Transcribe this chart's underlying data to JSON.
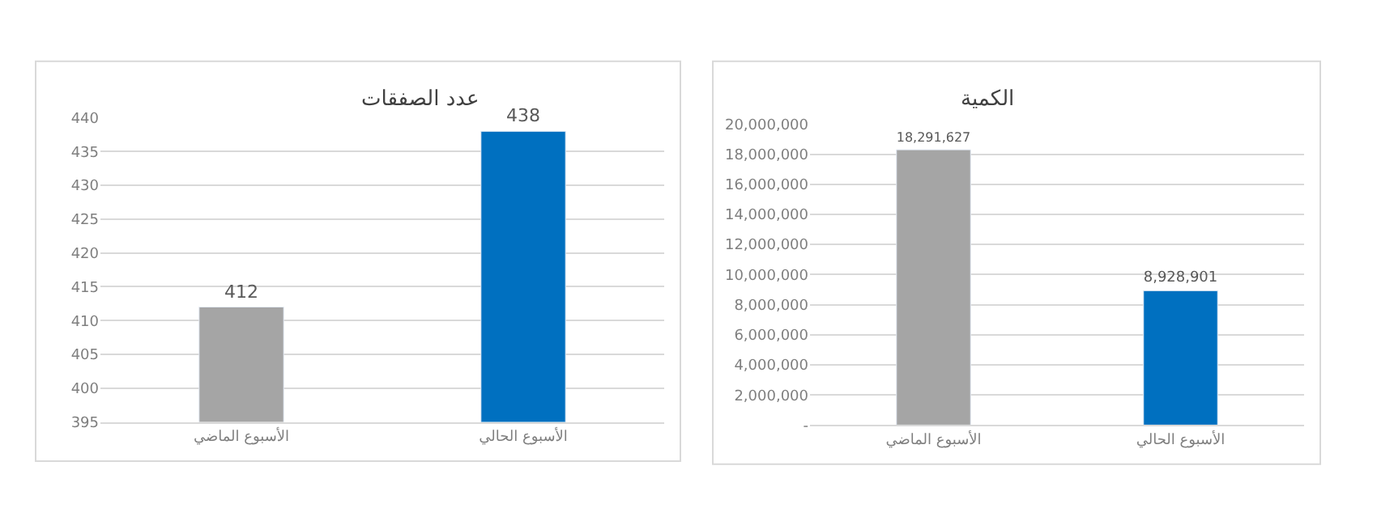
{
  "chart_data": [
    {
      "type": "bar",
      "title": "عدد الصفقات",
      "categories": [
        "الأسبوع الماضي",
        "الأسبوع الحالي"
      ],
      "values": [
        412,
        438
      ],
      "colors": [
        "#a5a5a5",
        "#0070c0"
      ],
      "ylim": [
        395,
        440
      ],
      "yticks": [
        395,
        400,
        405,
        410,
        415,
        420,
        425,
        430,
        435,
        440
      ],
      "grid": "y",
      "data_labels": true
    },
    {
      "type": "bar",
      "title": "الكمية",
      "categories": [
        "الأسبوع الماضي",
        "الأسبوع الحالي"
      ],
      "values": [
        18291627,
        8928901
      ],
      "colors": [
        "#a5a5a5",
        "#0070c0"
      ],
      "value_labels": [
        "18,291,627",
        "8,928,901"
      ],
      "ylim": [
        0,
        20000000
      ],
      "yticks": [
        {
          "value": 0,
          "label": "-"
        },
        {
          "value": 2000000,
          "label": "2,000,000"
        },
        {
          "value": 4000000,
          "label": "4,000,000"
        },
        {
          "value": 6000000,
          "label": "6,000,000"
        },
        {
          "value": 8000000,
          "label": "8,000,000"
        },
        {
          "value": 10000000,
          "label": "10,000,000"
        },
        {
          "value": 12000000,
          "label": "12,000,000"
        },
        {
          "value": 14000000,
          "label": "14,000,000"
        },
        {
          "value": 16000000,
          "label": "16,000,000"
        },
        {
          "value": 18000000,
          "label": "18,000,000"
        },
        {
          "value": 20000000,
          "label": "20,000,000"
        }
      ],
      "grid": "y"
    }
  ]
}
